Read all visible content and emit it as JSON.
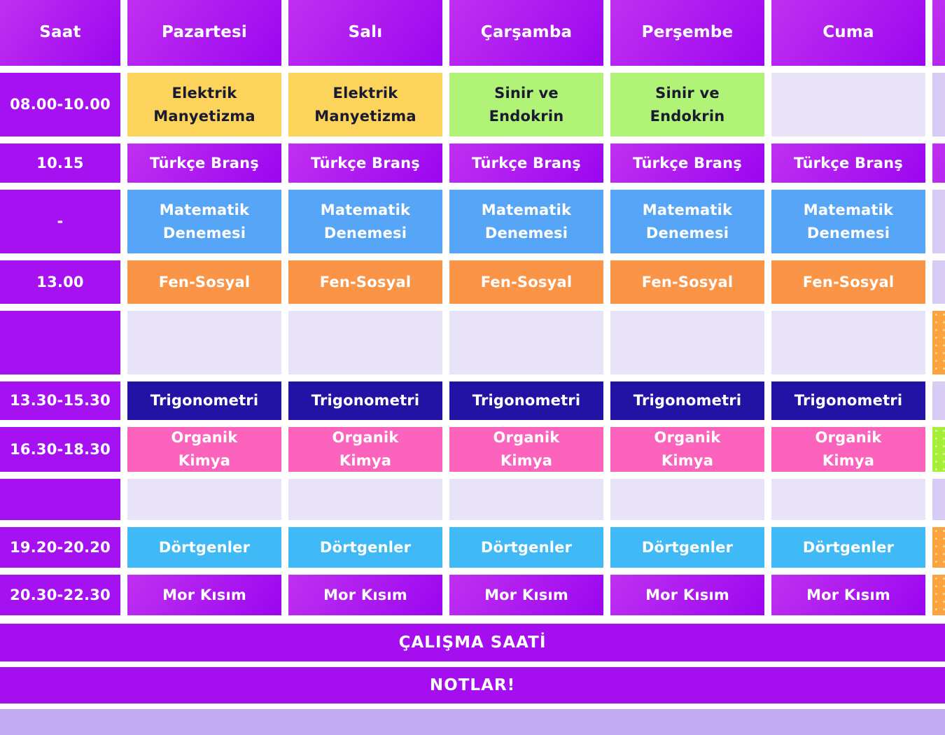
{
  "table": {
    "columns": [
      {
        "label": "Saat"
      },
      {
        "label": "Pazartesi"
      },
      {
        "label": "Salı"
      },
      {
        "label": "Çarşamba"
      },
      {
        "label": "Perşembe"
      },
      {
        "label": "Cuma"
      },
      {
        "label": ""
      }
    ],
    "rows": [
      {
        "time": "08.00-10.00",
        "cells": [
          {
            "text": "Elektrik Manyetizma",
            "style": "yellow"
          },
          {
            "text": "Elektrik Manyetizma",
            "style": "yellow"
          },
          {
            "text": "Sinir ve Endokrin",
            "style": "green"
          },
          {
            "text": "Sinir ve Endokrin",
            "style": "green"
          },
          {
            "text": "",
            "style": "lavender"
          }
        ],
        "edge": "lavender-dark"
      },
      {
        "time": "10.15",
        "cells": [
          {
            "text": "Türkçe Branş",
            "style": "purple-grad"
          },
          {
            "text": "Türkçe Branş",
            "style": "purple-grad"
          },
          {
            "text": "Türkçe Branş",
            "style": "purple-grad"
          },
          {
            "text": "Türkçe Branş",
            "style": "purple-grad"
          },
          {
            "text": "Türkçe Branş",
            "style": "purple-grad"
          }
        ],
        "edge": "purple-grad"
      },
      {
        "time": "-",
        "cells": [
          {
            "text": "Matematik Denemesi",
            "style": "blue"
          },
          {
            "text": "Matematik Denemesi",
            "style": "blue"
          },
          {
            "text": "Matematik Denemesi",
            "style": "blue"
          },
          {
            "text": "Matematik Denemesi",
            "style": "blue"
          },
          {
            "text": "Matematik Denemesi",
            "style": "blue"
          }
        ],
        "edge": "lavender-dark"
      },
      {
        "time": "13.00",
        "cells": [
          {
            "text": "Fen-Sosyal",
            "style": "orange"
          },
          {
            "text": "Fen-Sosyal",
            "style": "orange"
          },
          {
            "text": "Fen-Sosyal",
            "style": "orange"
          },
          {
            "text": "Fen-Sosyal",
            "style": "orange"
          },
          {
            "text": "Fen-Sosyal",
            "style": "orange"
          }
        ],
        "edge": "lavender-dark"
      },
      {
        "time": "",
        "cells": [
          {
            "text": "",
            "style": "lavender"
          },
          {
            "text": "",
            "style": "lavender"
          },
          {
            "text": "",
            "style": "lavender"
          },
          {
            "text": "",
            "style": "lavender"
          },
          {
            "text": "",
            "style": "lavender"
          }
        ],
        "edge": "orange-dots"
      },
      {
        "time": "13.30-15.30",
        "cells": [
          {
            "text": "Trigonometri",
            "style": "navy"
          },
          {
            "text": "Trigonometri",
            "style": "navy"
          },
          {
            "text": "Trigonometri",
            "style": "navy"
          },
          {
            "text": "Trigonometri",
            "style": "navy"
          },
          {
            "text": "Trigonometri",
            "style": "navy"
          }
        ],
        "edge": "lavender-dark"
      },
      {
        "time": "16.30-18.30",
        "cells": [
          {
            "text": "Organik Kimya",
            "style": "pink"
          },
          {
            "text": "Organik Kimya",
            "style": "pink"
          },
          {
            "text": "Organik Kimya",
            "style": "pink"
          },
          {
            "text": "Organik Kimya",
            "style": "pink"
          },
          {
            "text": "Organik Kimya",
            "style": "pink"
          }
        ],
        "edge": "green-dots"
      },
      {
        "time": "",
        "cells": [
          {
            "text": "",
            "style": "lavender"
          },
          {
            "text": "",
            "style": "lavender"
          },
          {
            "text": "",
            "style": "lavender"
          },
          {
            "text": "",
            "style": "lavender"
          },
          {
            "text": "",
            "style": "lavender"
          }
        ],
        "edge": "lavender-dark"
      },
      {
        "time": "19.20-20.20",
        "cells": [
          {
            "text": "Dörtgenler",
            "style": "lightblue"
          },
          {
            "text": "Dörtgenler",
            "style": "lightblue"
          },
          {
            "text": "Dörtgenler",
            "style": "lightblue"
          },
          {
            "text": "Dörtgenler",
            "style": "lightblue"
          },
          {
            "text": "Dörtgenler",
            "style": "lightblue"
          }
        ],
        "edge": "orange-dots"
      },
      {
        "time": "20.30-22.30",
        "cells": [
          {
            "text": "Mor Kısım",
            "style": "purple-grad"
          },
          {
            "text": "Mor Kısım",
            "style": "purple-grad"
          },
          {
            "text": "Mor Kısım",
            "style": "purple-grad"
          },
          {
            "text": "Mor Kısım",
            "style": "purple-grad"
          },
          {
            "text": "Mor Kısım",
            "style": "purple-grad"
          }
        ],
        "edge": "orange-dots"
      }
    ]
  },
  "footer": {
    "study_label": "ÇALIŞMA SAATİ",
    "notes_label": "NOTLAR!"
  },
  "colors": {
    "purpleGradFrom": "#c030f0",
    "purpleGradTo": "#9b06f0",
    "timePurple": "#a611f1",
    "footerPurple": "#a50ff0",
    "yellow": "#fcd45c",
    "green": "#b0f377",
    "lavender": "#e9e3f7",
    "lavenderDark": "#d8ccf4",
    "blue": "#57a5f7",
    "orange": "#fa9447",
    "navy": "#2213a5",
    "pink": "#fb63bc",
    "lightblue": "#3fbaf7",
    "orangeEdge": "#fba43f",
    "orangeEdgeDot": "#ffd98a",
    "greenEdge": "#a5ef3a",
    "greenEdgeDot": "#d6ff85",
    "bottomStrip": "#c3abf2",
    "darkText": "#1b1b30",
    "whiteText": "#ffffff"
  }
}
